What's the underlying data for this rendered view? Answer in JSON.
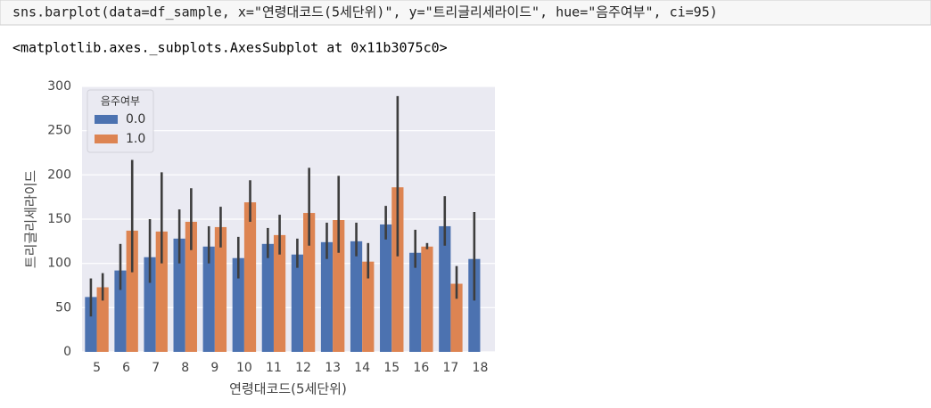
{
  "cell": {
    "code": "sns.barplot(data=df_sample, x=\"연령대코드(5세단위)\", y=\"트리글리세라이드\", hue=\"음주여부\", ci=95)",
    "output": "<matplotlib.axes._subplots.AxesSubplot at 0x11b3075c0>"
  },
  "chart_data": {
    "type": "bar",
    "x_label": "연령대코드(5세단위)",
    "y_label": "트리글리세라이드",
    "categories": [
      "5",
      "6",
      "7",
      "8",
      "9",
      "10",
      "11",
      "12",
      "13",
      "14",
      "15",
      "16",
      "17",
      "18"
    ],
    "legend_title": "음주여부",
    "legend": "upper left",
    "grid": true,
    "ylim": [
      0,
      300
    ],
    "yticks": [
      0,
      50,
      100,
      150,
      200,
      250,
      300
    ],
    "series": [
      {
        "name": "0.0",
        "color": "#4c72b0",
        "values": [
          62,
          92,
          107,
          128,
          119,
          106,
          122,
          110,
          124,
          125,
          144,
          112,
          142,
          105
        ],
        "ci_low": [
          40,
          70,
          78,
          100,
          100,
          83,
          106,
          95,
          105,
          108,
          127,
          95,
          120,
          58
        ],
        "ci_high": [
          83,
          122,
          150,
          161,
          142,
          130,
          140,
          128,
          146,
          146,
          165,
          138,
          176,
          158
        ]
      },
      {
        "name": "1.0",
        "color": "#dd8452",
        "values": [
          73,
          137,
          136,
          147,
          141,
          169,
          132,
          157,
          149,
          102,
          186,
          119,
          77,
          null
        ],
        "ci_low": [
          58,
          90,
          100,
          115,
          118,
          147,
          110,
          120,
          112,
          83,
          108,
          116,
          60,
          null
        ],
        "ci_high": [
          89,
          217,
          203,
          185,
          164,
          194,
          155,
          208,
          199,
          123,
          289,
          123,
          97,
          null
        ]
      }
    ]
  }
}
